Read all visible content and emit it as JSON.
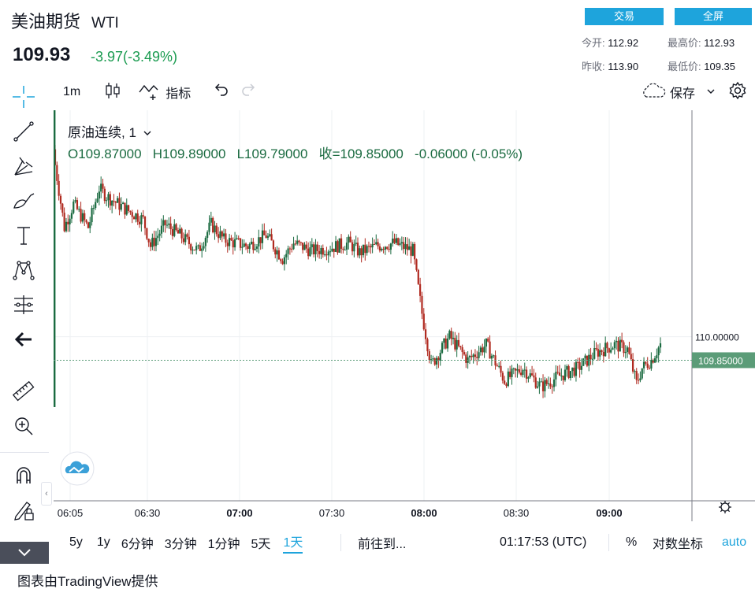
{
  "header": {
    "title": "美油期货",
    "symbol": "WTI",
    "price": "109.93",
    "change": "-3.97(-3.49%)",
    "trade_button": "交易",
    "fullscreen_button": "全屏",
    "stats": {
      "open_label": "今开:",
      "open_value": "112.92",
      "high_label": "最高价:",
      "high_value": "112.93",
      "prev_close_label": "昨收:",
      "prev_close_value": "113.90",
      "low_label": "最低价:",
      "low_value": "109.35"
    }
  },
  "toolbar": {
    "interval": "1m",
    "indicators": "指标",
    "save": "保存"
  },
  "legend": {
    "series": "原油连续, 1",
    "open": "O109.87000",
    "high": "H109.89000",
    "low": "L109.79000",
    "close": "收=109.85000",
    "change": "-0.06000 (-0.05%)"
  },
  "bottom": {
    "ranges": [
      "5y",
      "1y",
      "6分钟",
      "3分钟",
      "1分钟",
      "5天",
      "1天"
    ],
    "goto": "前往到...",
    "clock": "01:17:53 (UTC)",
    "percent": "%",
    "log": "对数坐标",
    "auto": "auto"
  },
  "attribution": "图表由TradingView提供",
  "colors": {
    "up": "#1b6b41",
    "down": "#b02a20",
    "accent": "#1ea4dc",
    "price_tag": "#5b9c78"
  },
  "chart_data": {
    "type": "candlestick",
    "x_ticks": [
      "06:05",
      "06:30",
      "07:00",
      "07:30",
      "08:00",
      "08:30",
      "09:00"
    ],
    "y_ticks": [
      "110.00000"
    ],
    "last_price_label": "109.85000",
    "last_price": 109.85,
    "y_range": [
      108.95,
      111.45
    ],
    "path_prices": [
      [
        0,
        111.1
      ],
      [
        5,
        110.7
      ],
      [
        10,
        110.85
      ],
      [
        18,
        110.7
      ],
      [
        24,
        110.95
      ],
      [
        28,
        110.9
      ],
      [
        38,
        110.82
      ],
      [
        48,
        110.75
      ],
      [
        52,
        110.58
      ],
      [
        60,
        110.72
      ],
      [
        68,
        110.65
      ],
      [
        78,
        110.55
      ],
      [
        85,
        110.72
      ],
      [
        92,
        110.62
      ],
      [
        105,
        110.58
      ],
      [
        115,
        110.65
      ],
      [
        124,
        110.5
      ],
      [
        130,
        110.6
      ],
      [
        140,
        110.55
      ],
      [
        150,
        110.57
      ],
      [
        160,
        110.6
      ],
      [
        166,
        110.54
      ],
      [
        175,
        110.58
      ],
      [
        185,
        110.6
      ],
      [
        195,
        110.55
      ],
      [
        200,
        110.15
      ],
      [
        205,
        109.82
      ],
      [
        215,
        110.0
      ],
      [
        225,
        109.85
      ],
      [
        235,
        109.95
      ],
      [
        245,
        109.72
      ],
      [
        255,
        109.8
      ],
      [
        265,
        109.68
      ],
      [
        275,
        109.75
      ],
      [
        285,
        109.8
      ],
      [
        295,
        109.9
      ],
      [
        305,
        109.95
      ],
      [
        312,
        109.92
      ],
      [
        317,
        109.7
      ],
      [
        320,
        109.8
      ],
      [
        325,
        109.85
      ],
      [
        330,
        109.95
      ]
    ]
  }
}
